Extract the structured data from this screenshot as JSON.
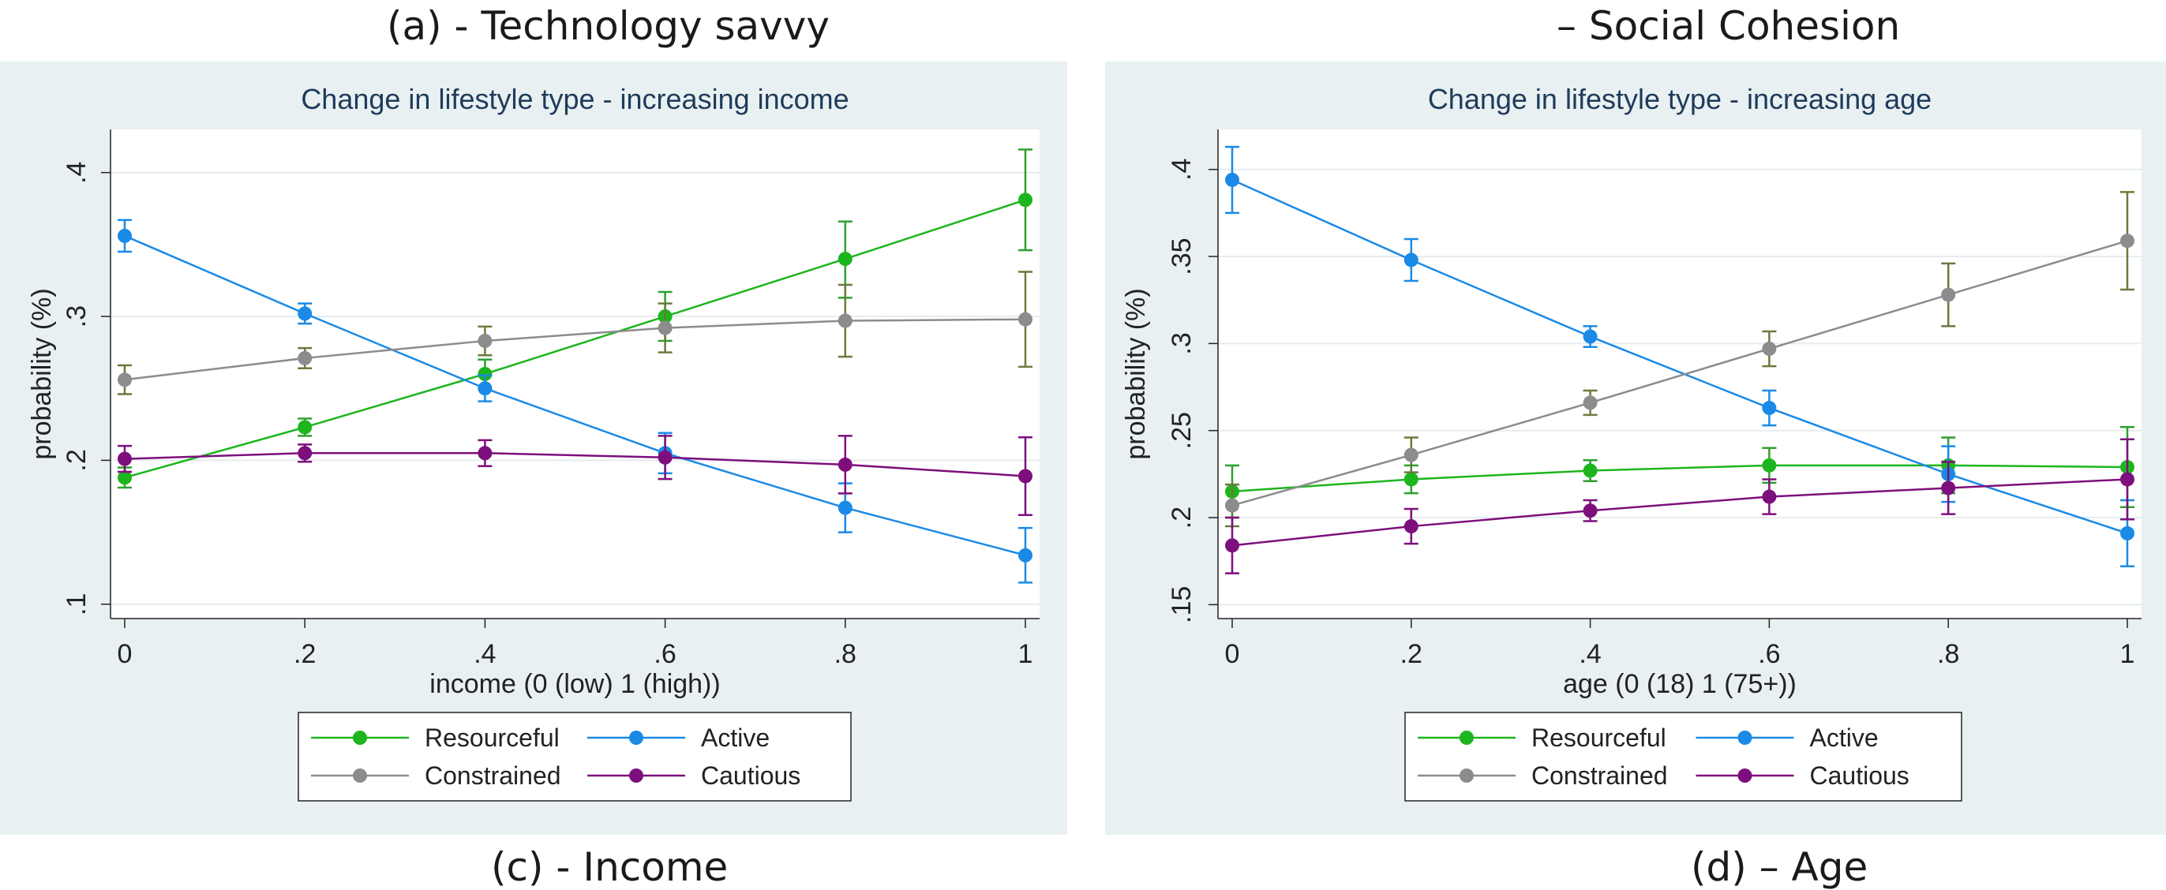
{
  "captions": {
    "top_left": "(a) - Technology savvy",
    "top_right": "– Social Cohesion",
    "bottom_left": "(c) - Income",
    "bottom_right": "(d) – Age"
  },
  "colors": {
    "Resourceful": "#1db51d",
    "Active": "#1a8ae6",
    "Constrained": "#8c8c8c",
    "Cautious": "#7d0f7d",
    "ci_Resourceful": "#2f9f2f",
    "ci_Active": "#1a8ae6",
    "ci_Constrained": "#6b7a3c",
    "ci_Cautious": "#7d0f7d",
    "panel_bg": "#e9f0f2",
    "plot_bg": "#ffffff",
    "title": "#1f3b5a"
  },
  "legend": {
    "entries": [
      "Resourceful",
      "Active",
      "Constrained",
      "Cautious"
    ]
  },
  "chart_data": [
    {
      "type": "line",
      "title": "Change in lifestyle type - increasing income",
      "xlabel": "income (0 (low) 1 (high))",
      "ylabel": "probability (%)",
      "xlim": [
        0,
        1
      ],
      "ylim": [
        0.09,
        0.43
      ],
      "x": [
        0,
        0.2,
        0.4,
        0.6,
        0.8,
        1
      ],
      "xticks": [
        "0",
        ".2",
        ".4",
        ".6",
        ".8",
        "1"
      ],
      "yticks": [
        {
          "value": 0.1,
          "label": ".1"
        },
        {
          "value": 0.2,
          "label": ".2"
        },
        {
          "value": 0.3,
          "label": ".3"
        },
        {
          "value": 0.4,
          "label": ".4"
        }
      ],
      "series": [
        {
          "name": "Resourceful",
          "values": [
            0.188,
            0.223,
            0.26,
            0.3,
            0.34,
            0.381
          ],
          "lower": [
            0.181,
            0.217,
            0.25,
            0.283,
            0.313,
            0.346
          ],
          "upper": [
            0.195,
            0.229,
            0.27,
            0.317,
            0.366,
            0.416
          ]
        },
        {
          "name": "Active",
          "values": [
            0.356,
            0.302,
            0.25,
            0.205,
            0.167,
            0.134
          ],
          "lower": [
            0.345,
            0.295,
            0.241,
            0.191,
            0.15,
            0.115
          ],
          "upper": [
            0.367,
            0.309,
            0.259,
            0.219,
            0.184,
            0.153
          ]
        },
        {
          "name": "Constrained",
          "values": [
            0.256,
            0.271,
            0.283,
            0.292,
            0.297,
            0.298
          ],
          "lower": [
            0.246,
            0.264,
            0.273,
            0.275,
            0.272,
            0.265
          ],
          "upper": [
            0.266,
            0.278,
            0.293,
            0.309,
            0.322,
            0.331
          ]
        },
        {
          "name": "Cautious",
          "values": [
            0.201,
            0.205,
            0.205,
            0.202,
            0.197,
            0.189
          ],
          "lower": [
            0.192,
            0.199,
            0.196,
            0.187,
            0.177,
            0.162
          ],
          "upper": [
            0.21,
            0.211,
            0.214,
            0.217,
            0.217,
            0.216
          ]
        }
      ]
    },
    {
      "type": "line",
      "title": "Change in lifestyle type - increasing age",
      "xlabel": "age (0 (18) 1 (75+))",
      "ylabel": "probability (%)",
      "xlim": [
        0,
        1
      ],
      "ylim": [
        0.142,
        0.423
      ],
      "x": [
        0,
        0.2,
        0.4,
        0.6,
        0.8,
        1
      ],
      "xticks": [
        "0",
        ".2",
        ".4",
        ".6",
        ".8",
        "1"
      ],
      "yticks": [
        {
          "value": 0.15,
          "label": ".15"
        },
        {
          "value": 0.2,
          "label": ".2"
        },
        {
          "value": 0.25,
          "label": ".25"
        },
        {
          "value": 0.3,
          "label": ".3"
        },
        {
          "value": 0.35,
          "label": ".35"
        },
        {
          "value": 0.4,
          "label": ".4"
        }
      ],
      "series": [
        {
          "name": "Resourceful",
          "values": [
            0.215,
            0.222,
            0.227,
            0.23,
            0.23,
            0.229
          ],
          "lower": [
            0.2,
            0.214,
            0.221,
            0.22,
            0.214,
            0.206
          ],
          "upper": [
            0.23,
            0.23,
            0.233,
            0.24,
            0.246,
            0.252
          ]
        },
        {
          "name": "Active",
          "values": [
            0.394,
            0.348,
            0.304,
            0.263,
            0.225,
            0.191
          ],
          "lower": [
            0.375,
            0.336,
            0.298,
            0.253,
            0.209,
            0.172
          ],
          "upper": [
            0.413,
            0.36,
            0.31,
            0.273,
            0.241,
            0.21
          ]
        },
        {
          "name": "Constrained",
          "values": [
            0.207,
            0.236,
            0.266,
            0.297,
            0.328,
            0.359
          ],
          "lower": [
            0.195,
            0.226,
            0.259,
            0.287,
            0.31,
            0.331
          ],
          "upper": [
            0.219,
            0.246,
            0.273,
            0.307,
            0.346,
            0.387
          ]
        },
        {
          "name": "Cautious",
          "values": [
            0.184,
            0.195,
            0.204,
            0.212,
            0.217,
            0.222
          ],
          "lower": [
            0.168,
            0.185,
            0.198,
            0.202,
            0.202,
            0.199
          ],
          "upper": [
            0.2,
            0.205,
            0.21,
            0.222,
            0.232,
            0.245
          ]
        }
      ]
    }
  ]
}
